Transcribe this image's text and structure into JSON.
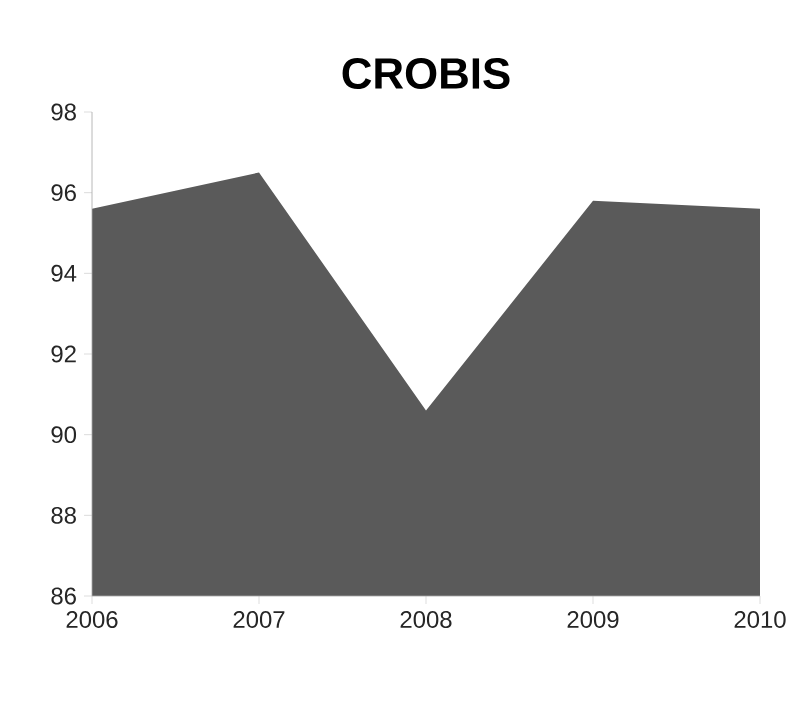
{
  "chart_data": {
    "type": "area",
    "title": "CROBIS",
    "x": [
      2006,
      2007,
      2008,
      2009,
      2010
    ],
    "series": [
      {
        "color": "#5a5a5a",
        "values": [
          95.6,
          96.5,
          90.6,
          95.8,
          95.6
        ]
      }
    ],
    "xlim": [
      2006,
      2010
    ],
    "xticks": [
      2006,
      2007,
      2008,
      2009,
      2010
    ],
    "ylim": [
      86,
      98
    ],
    "yticks": [
      86,
      88,
      90,
      92,
      94,
      96,
      98
    ]
  }
}
